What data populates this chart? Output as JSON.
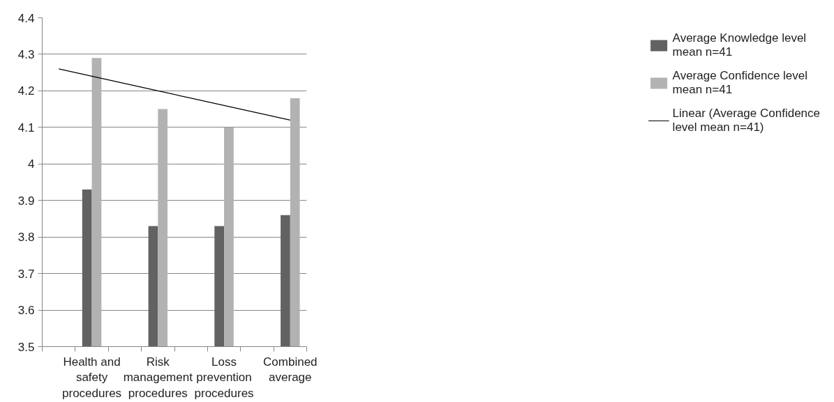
{
  "chart_data": {
    "type": "bar",
    "categories": [
      null,
      "Health and safety procedures",
      null,
      "Risk management procedures",
      null,
      "Loss prevention procedures",
      null,
      "Combined average"
    ],
    "series": [
      {
        "name": "Average Knowledge level mean n=41",
        "color": "#626262",
        "values": [
          null,
          3.93,
          null,
          3.83,
          null,
          3.83,
          null,
          3.86
        ]
      },
      {
        "name": "Average Confidence level mean n=41",
        "color": "#b2b2b2",
        "values": [
          null,
          4.29,
          null,
          4.15,
          null,
          4.1,
          null,
          4.18
        ]
      },
      {
        "name": "Linear (Average Confidence level mean n=41)",
        "type": "line",
        "color": "#000000",
        "values": [
          4.26,
          4.24,
          4.22,
          4.2,
          4.18,
          4.16,
          4.14,
          4.12
        ]
      }
    ],
    "ylim": [
      3.5,
      4.4
    ],
    "yticks": [
      3.5,
      3.6,
      3.7,
      3.8,
      3.9,
      4,
      4.1,
      4.2,
      4.3,
      4.4
    ],
    "grid": "y",
    "legend": "right"
  }
}
